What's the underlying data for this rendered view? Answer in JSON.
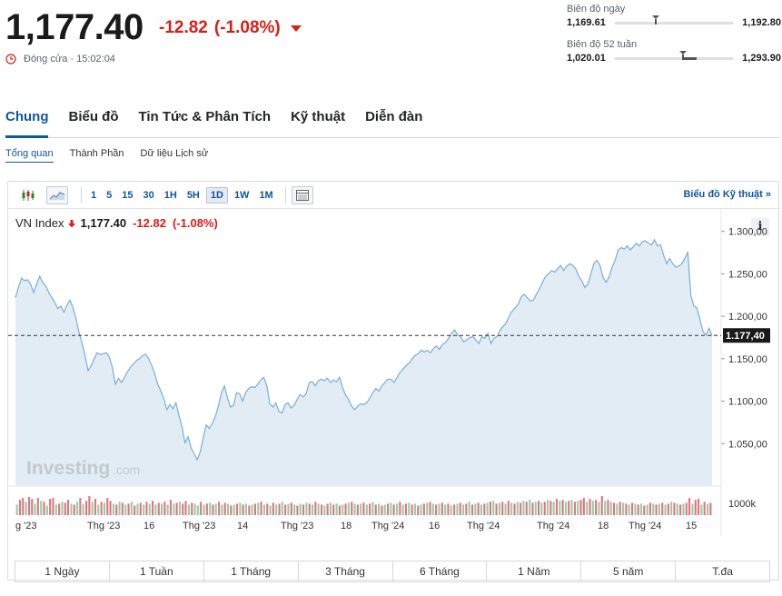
{
  "quote": {
    "price": "1,177.40",
    "change": "-12.82",
    "change_pct": "(-1.08%)",
    "status": "Đóng cửa · 15:02:04"
  },
  "day_range": {
    "title": "Biên độ ngày",
    "low": "1,169.61",
    "high": "1,192.80",
    "current_fraction": 0.34
  },
  "week52_range": {
    "title": "Biên độ 52 tuần",
    "low": "1,020.01",
    "high": "1,293.90",
    "current_fraction": 0.57
  },
  "main_tabs": [
    "Chung",
    "Biểu đồ",
    "Tin Tức & Phân Tích",
    "Kỹ thuật",
    "Diễn đàn"
  ],
  "sub_tabs": [
    "Tổng quan",
    "Thành Phần",
    "Dữ liệu Lịch sử"
  ],
  "toolbar": {
    "intervals": [
      "1",
      "5",
      "15",
      "30",
      "1H",
      "5H",
      "1D",
      "1W",
      "1M"
    ],
    "active_interval": "1D",
    "tech_link": "Biểu đồ Kỹ thuật »"
  },
  "legend": {
    "name": "VN Index",
    "value": "1,177.40",
    "change": "-12.82",
    "change_pct": "(-1.08%)"
  },
  "info_label": "i",
  "watermark": {
    "brand": "Investing",
    "suffix": ".com"
  },
  "periods": [
    "1 Ngày",
    "1 Tuần",
    "1 Tháng",
    "3 Tháng",
    "6 Tháng",
    "1 Năm",
    "5 năm",
    "T.đa"
  ],
  "colors": {
    "line": "#7aaed6",
    "area": "#e1ecf5",
    "down": "#d91e18",
    "accent": "#1256a0",
    "vol_up": "#8fd1a7",
    "vol_down": "#e2737f"
  },
  "chart_data": {
    "type": "area",
    "ylim": [
      1000,
      1320
    ],
    "y_ticks": [
      1300,
      1250,
      1200,
      1150,
      1100,
      1050
    ],
    "y_tick_labels": [
      "1.300,00",
      "1.250,00",
      "1.200,00",
      "1.150,00",
      "1.100,00",
      "1.050,00"
    ],
    "current_value": 1177.4,
    "current_label": "1.177,40",
    "volume_label": "1000k",
    "x_tick_labels": [
      "g '23",
      "Thg '23",
      "16",
      "Thg '23",
      "14",
      "Thg '23",
      "18",
      "Thg '24",
      "16",
      "Thg '24",
      "Thg '24",
      "18",
      "Thg '24",
      "15"
    ],
    "values": [
      1222,
      1234,
      1245,
      1242,
      1243,
      1238,
      1228,
      1238,
      1247,
      1240,
      1236,
      1228,
      1222,
      1216,
      1209,
      1212,
      1205,
      1213,
      1219,
      1210,
      1197,
      1181,
      1168,
      1154,
      1136,
      1142,
      1150,
      1157,
      1155,
      1156,
      1157,
      1152,
      1140,
      1120,
      1127,
      1122,
      1128,
      1135,
      1140,
      1144,
      1148,
      1150,
      1154,
      1155,
      1150,
      1142,
      1132,
      1120,
      1112,
      1103,
      1090,
      1096,
      1091,
      1098,
      1083,
      1070,
      1051,
      1058,
      1045,
      1038,
      1031,
      1040,
      1057,
      1072,
      1068,
      1074,
      1082,
      1094,
      1110,
      1118,
      1104,
      1093,
      1095,
      1110,
      1109,
      1100,
      1110,
      1115,
      1117,
      1116,
      1120,
      1125,
      1128,
      1118,
      1097,
      1093,
      1098,
      1088,
      1086,
      1096,
      1098,
      1092,
      1095,
      1102,
      1108,
      1105,
      1109,
      1122,
      1123,
      1118,
      1124,
      1126,
      1124,
      1127,
      1122,
      1125,
      1123,
      1128,
      1116,
      1107,
      1102,
      1094,
      1090,
      1094,
      1097,
      1096,
      1098,
      1104,
      1110,
      1115,
      1112,
      1118,
      1122,
      1126,
      1126,
      1122,
      1128,
      1134,
      1138,
      1142,
      1145,
      1150,
      1154,
      1156,
      1160,
      1158,
      1160,
      1157,
      1162,
      1165,
      1161,
      1167,
      1169,
      1174,
      1180,
      1184,
      1178,
      1176,
      1170,
      1172,
      1175,
      1176,
      1172,
      1168,
      1176,
      1174,
      1180,
      1168,
      1174,
      1176,
      1184,
      1188,
      1192,
      1200,
      1206,
      1210,
      1214,
      1223,
      1226,
      1222,
      1218,
      1219,
      1226,
      1232,
      1240,
      1247,
      1250,
      1254,
      1252,
      1256,
      1260,
      1254,
      1259,
      1262,
      1260,
      1256,
      1247,
      1242,
      1234,
      1238,
      1250,
      1262,
      1266,
      1260,
      1246,
      1240,
      1246,
      1258,
      1266,
      1278,
      1281,
      1279,
      1283,
      1278,
      1282,
      1286,
      1283,
      1288,
      1289,
      1286,
      1284,
      1290,
      1283,
      1284,
      1272,
      1262,
      1268,
      1262,
      1258,
      1259,
      1262,
      1268,
      1276,
      1224,
      1212,
      1210,
      1196,
      1182,
      1178,
      1186,
      1177
    ],
    "volume": [
      [
        "u",
        0.55
      ],
      [
        "d",
        0.8
      ],
      [
        "d",
        0.9
      ],
      [
        "u",
        0.7
      ],
      [
        "d",
        0.95
      ],
      [
        "d",
        0.85
      ],
      [
        "u",
        0.6
      ],
      [
        "d",
        0.9
      ],
      [
        "u",
        0.75
      ],
      [
        "d",
        0.7
      ],
      [
        "u",
        0.5
      ],
      [
        "d",
        0.85
      ],
      [
        "d",
        0.9
      ],
      [
        "u",
        0.55
      ],
      [
        "d",
        0.6
      ],
      [
        "u",
        0.7
      ],
      [
        "d",
        0.65
      ],
      [
        "d",
        0.8
      ],
      [
        "u",
        0.6
      ],
      [
        "d",
        0.55
      ],
      [
        "u",
        0.7
      ],
      [
        "d",
        0.9
      ],
      [
        "u",
        0.6
      ],
      [
        "d",
        0.75
      ],
      [
        "d",
        1.0
      ],
      [
        "u",
        0.7
      ],
      [
        "d",
        0.85
      ],
      [
        "u",
        0.55
      ],
      [
        "d",
        0.7
      ],
      [
        "u",
        0.65
      ],
      [
        "d",
        0.9
      ],
      [
        "d",
        0.75
      ],
      [
        "u",
        0.6
      ],
      [
        "d",
        0.55
      ],
      [
        "u",
        0.7
      ],
      [
        "d",
        0.65
      ],
      [
        "u",
        0.55
      ],
      [
        "d",
        0.6
      ],
      [
        "u",
        0.7
      ],
      [
        "d",
        0.5
      ],
      [
        "u",
        0.6
      ],
      [
        "d",
        0.65
      ],
      [
        "u",
        0.55
      ],
      [
        "d",
        0.7
      ],
      [
        "u",
        0.6
      ],
      [
        "d",
        0.75
      ],
      [
        "u",
        0.55
      ],
      [
        "d",
        0.65
      ],
      [
        "u",
        0.6
      ],
      [
        "d",
        0.7
      ],
      [
        "u",
        0.55
      ],
      [
        "d",
        0.8
      ],
      [
        "u",
        0.6
      ],
      [
        "d",
        0.65
      ],
      [
        "u",
        0.7
      ],
      [
        "d",
        0.6
      ],
      [
        "d",
        0.75
      ],
      [
        "u",
        0.55
      ],
      [
        "d",
        0.65
      ],
      [
        "u",
        0.6
      ],
      [
        "u",
        0.5
      ],
      [
        "d",
        0.7
      ],
      [
        "u",
        0.55
      ],
      [
        "d",
        0.6
      ],
      [
        "u",
        0.65
      ],
      [
        "d",
        0.55
      ],
      [
        "u",
        0.6
      ],
      [
        "d",
        0.7
      ],
      [
        "u",
        0.55
      ],
      [
        "d",
        0.65
      ],
      [
        "u",
        0.6
      ],
      [
        "d",
        0.5
      ],
      [
        "u",
        0.55
      ],
      [
        "d",
        0.6
      ],
      [
        "u",
        0.65
      ],
      [
        "d",
        0.55
      ],
      [
        "u",
        0.6
      ],
      [
        "d",
        0.5
      ],
      [
        "u",
        0.55
      ],
      [
        "d",
        0.6
      ],
      [
        "u",
        0.65
      ],
      [
        "d",
        0.7
      ],
      [
        "u",
        0.55
      ],
      [
        "d",
        0.6
      ],
      [
        "u",
        0.5
      ],
      [
        "d",
        0.65
      ],
      [
        "u",
        0.55
      ],
      [
        "d",
        0.6
      ],
      [
        "u",
        0.7
      ],
      [
        "d",
        0.55
      ],
      [
        "u",
        0.6
      ],
      [
        "d",
        0.65
      ],
      [
        "u",
        0.55
      ],
      [
        "d",
        0.5
      ],
      [
        "u",
        0.6
      ],
      [
        "d",
        0.55
      ],
      [
        "u",
        0.65
      ],
      [
        "d",
        0.6
      ],
      [
        "u",
        0.55
      ],
      [
        "d",
        0.7
      ],
      [
        "u",
        0.6
      ],
      [
        "d",
        0.55
      ],
      [
        "u",
        0.5
      ],
      [
        "d",
        0.6
      ],
      [
        "u",
        0.65
      ],
      [
        "d",
        0.55
      ],
      [
        "u",
        0.6
      ],
      [
        "d",
        0.5
      ],
      [
        "u",
        0.55
      ],
      [
        "d",
        0.6
      ],
      [
        "u",
        0.65
      ],
      [
        "d",
        0.7
      ],
      [
        "u",
        0.6
      ],
      [
        "d",
        0.55
      ],
      [
        "u",
        0.6
      ],
      [
        "d",
        0.65
      ],
      [
        "u",
        0.55
      ],
      [
        "d",
        0.6
      ],
      [
        "u",
        0.7
      ],
      [
        "d",
        0.55
      ],
      [
        "u",
        0.6
      ],
      [
        "d",
        0.5
      ],
      [
        "u",
        0.55
      ],
      [
        "d",
        0.6
      ],
      [
        "u",
        0.65
      ],
      [
        "d",
        0.55
      ],
      [
        "u",
        0.6
      ],
      [
        "d",
        0.7
      ],
      [
        "u",
        0.55
      ],
      [
        "d",
        0.6
      ],
      [
        "u",
        0.65
      ],
      [
        "d",
        0.55
      ],
      [
        "u",
        0.6
      ],
      [
        "d",
        0.5
      ],
      [
        "u",
        0.55
      ],
      [
        "d",
        0.6
      ],
      [
        "u",
        0.65
      ],
      [
        "d",
        0.7
      ],
      [
        "u",
        0.6
      ],
      [
        "d",
        0.55
      ],
      [
        "u",
        0.6
      ],
      [
        "d",
        0.65
      ],
      [
        "u",
        0.55
      ],
      [
        "d",
        0.6
      ],
      [
        "u",
        0.5
      ],
      [
        "d",
        0.55
      ],
      [
        "u",
        0.6
      ],
      [
        "d",
        0.65
      ],
      [
        "u",
        0.55
      ],
      [
        "d",
        0.6
      ],
      [
        "u",
        0.7
      ],
      [
        "d",
        0.55
      ],
      [
        "u",
        0.6
      ],
      [
        "d",
        0.65
      ],
      [
        "u",
        0.55
      ],
      [
        "d",
        0.6
      ],
      [
        "u",
        0.65
      ],
      [
        "d",
        0.7
      ],
      [
        "u",
        0.75
      ],
      [
        "d",
        0.6
      ],
      [
        "u",
        0.65
      ],
      [
        "d",
        0.7
      ],
      [
        "u",
        0.6
      ],
      [
        "d",
        0.75
      ],
      [
        "u",
        0.65
      ],
      [
        "d",
        0.6
      ],
      [
        "u",
        0.7
      ],
      [
        "d",
        0.65
      ],
      [
        "u",
        0.75
      ],
      [
        "d",
        0.7
      ],
      [
        "u",
        0.8
      ],
      [
        "d",
        0.65
      ],
      [
        "u",
        0.7
      ],
      [
        "d",
        0.75
      ],
      [
        "u",
        0.65
      ],
      [
        "d",
        0.7
      ],
      [
        "u",
        0.8
      ],
      [
        "d",
        0.75
      ],
      [
        "u",
        0.7
      ],
      [
        "d",
        0.85
      ],
      [
        "u",
        0.75
      ],
      [
        "d",
        0.8
      ],
      [
        "u",
        0.7
      ],
      [
        "d",
        0.75
      ],
      [
        "u",
        0.8
      ],
      [
        "d",
        0.7
      ],
      [
        "u",
        0.75
      ],
      [
        "d",
        0.8
      ],
      [
        "d",
        0.9
      ],
      [
        "u",
        0.7
      ],
      [
        "d",
        0.85
      ],
      [
        "u",
        0.75
      ],
      [
        "d",
        0.8
      ],
      [
        "u",
        0.7
      ],
      [
        "d",
        1.0
      ],
      [
        "u",
        0.75
      ],
      [
        "d",
        0.8
      ],
      [
        "u",
        0.7
      ],
      [
        "d",
        0.65
      ],
      [
        "u",
        0.6
      ],
      [
        "d",
        0.7
      ],
      [
        "u",
        0.65
      ],
      [
        "d",
        0.6
      ],
      [
        "u",
        0.55
      ],
      [
        "d",
        0.65
      ],
      [
        "u",
        0.6
      ],
      [
        "d",
        0.55
      ],
      [
        "u",
        0.6
      ],
      [
        "d",
        0.5
      ],
      [
        "u",
        0.55
      ],
      [
        "d",
        0.65
      ],
      [
        "u",
        0.6
      ],
      [
        "d",
        0.55
      ],
      [
        "u",
        0.6
      ],
      [
        "d",
        0.65
      ],
      [
        "u",
        0.55
      ],
      [
        "d",
        0.6
      ],
      [
        "u",
        0.7
      ],
      [
        "d",
        0.65
      ],
      [
        "u",
        0.6
      ],
      [
        "d",
        0.55
      ],
      [
        "u",
        0.6
      ],
      [
        "d",
        0.65
      ],
      [
        "d",
        0.9
      ],
      [
        "u",
        0.6
      ],
      [
        "d",
        0.8
      ],
      [
        "d",
        0.85
      ],
      [
        "u",
        0.55
      ],
      [
        "d",
        0.7
      ],
      [
        "u",
        0.6
      ],
      [
        "d",
        0.65
      ]
    ]
  }
}
